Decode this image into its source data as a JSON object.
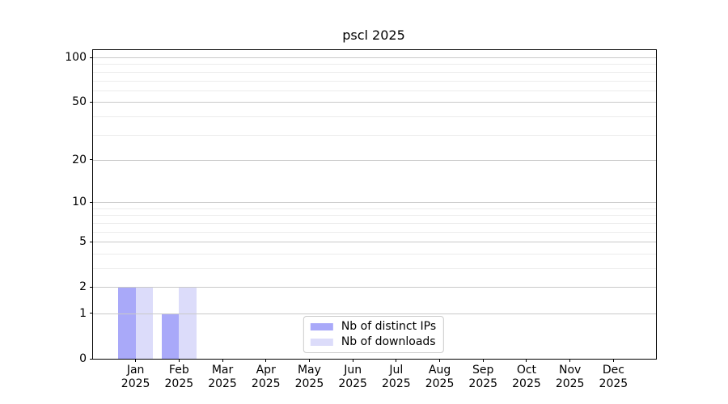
{
  "title": "pscl 2025",
  "colors": {
    "background": "#ffffff",
    "axis": "#000000",
    "grid_major": "#c9c9c9",
    "grid_minor": "#ececec",
    "legend_border": "#cccccc",
    "distinct_ips": "#a9a9f9",
    "downloads": "#dcdcfa"
  },
  "chart_data": {
    "type": "bar",
    "title": "pscl 2025",
    "categories": [
      "Jan 2025",
      "Feb 2025",
      "Mar 2025",
      "Apr 2025",
      "May 2025",
      "Jun 2025",
      "Jul 2025",
      "Aug 2025",
      "Sep 2025",
      "Oct 2025",
      "Nov 2025",
      "Dec 2025"
    ],
    "series": [
      {
        "name": "Nb of distinct IPs",
        "color": "#a9a9f9",
        "values": [
          2,
          1,
          0,
          0,
          0,
          0,
          0,
          0,
          0,
          0,
          0,
          0
        ]
      },
      {
        "name": "Nb of downloads",
        "color": "#dcdcfa",
        "values": [
          2,
          2,
          0,
          0,
          0,
          0,
          0,
          0,
          0,
          0,
          0,
          0
        ]
      }
    ],
    "xlabel": "",
    "ylabel": "",
    "yscale": "log1p",
    "yticks_major": [
      0,
      1,
      2,
      5,
      10,
      20,
      50,
      100
    ],
    "yticks_minor": [
      3,
      4,
      6,
      7,
      8,
      9,
      30,
      40,
      60,
      70,
      80,
      90
    ],
    "ylim": [
      0,
      112
    ],
    "xlim": [
      -0.98,
      11.98
    ],
    "bar_width_units": 0.4,
    "grid": "horizontal, major and minor, drawn above bars",
    "legend_position": "lower center inside plot"
  },
  "legend": {
    "items": [
      {
        "label": "Nb of distinct IPs",
        "color": "#a9a9f9"
      },
      {
        "label": "Nb of downloads",
        "color": "#dcdcfa"
      }
    ]
  }
}
